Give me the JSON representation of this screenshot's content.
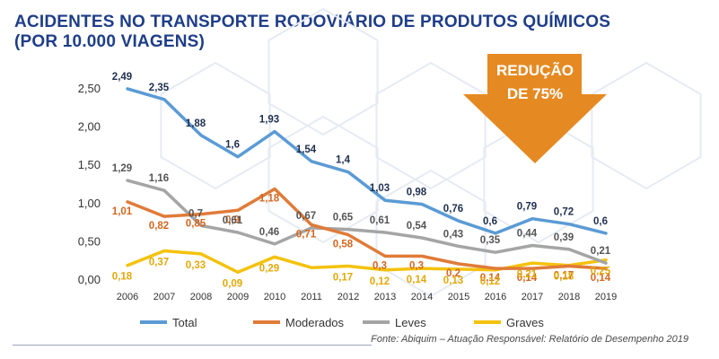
{
  "title_line1": "ACIDENTES NO TRANSPORTE RODOVIÁRIO DE PRODUTOS QUÍMICOS",
  "title_line2": "(POR 10.000 VIAGENS)",
  "source": "Fonte: Abiquim – Atuação Responsável: Relatório de Desempenho 2019",
  "callout": {
    "line1": "REDUÇÃO",
    "line2": "DE 75%",
    "color": "#e58a23"
  },
  "chart_data": {
    "type": "line",
    "x": [
      "2006",
      "2007",
      "2008",
      "2009",
      "2010",
      "2011",
      "2012",
      "2013",
      "2014",
      "2015",
      "2016",
      "2017",
      "2018",
      "2019"
    ],
    "ylim": [
      0,
      2.5
    ],
    "yticks": [
      "0,00",
      "0,50",
      "1,00",
      "1,50",
      "2,00",
      "2,50"
    ],
    "grid": false,
    "legend": "bottom",
    "series": [
      {
        "name": "Total",
        "color": "#5b9bd5",
        "values": [
          2.49,
          2.35,
          1.88,
          1.6,
          1.93,
          1.54,
          1.4,
          1.03,
          0.98,
          0.76,
          0.6,
          0.79,
          0.72,
          0.6
        ],
        "labels": [
          "2,49",
          "2,35",
          "1,88",
          "1,6",
          "1,93",
          "1,54",
          "1,4",
          "1,03",
          "0,98",
          "0,76",
          "0,6",
          "0,79",
          "0,72",
          "0,6"
        ]
      },
      {
        "name": "Moderados",
        "color": "#e07b39",
        "values": [
          1.01,
          0.82,
          0.85,
          0.9,
          1.18,
          0.71,
          0.58,
          0.3,
          0.3,
          0.2,
          0.14,
          0.14,
          0.17,
          0.14
        ],
        "labels": [
          "1,01",
          "0,82",
          "0,85",
          "0,9",
          "1,18",
          "0,71",
          "0,58",
          "0,3",
          "0,3",
          "0,2",
          "0,14",
          "0,14",
          "0,17",
          "0,14"
        ]
      },
      {
        "name": "Leves",
        "color": "#a5a5a5",
        "values": [
          1.29,
          1.16,
          0.7,
          0.61,
          0.46,
          0.67,
          0.65,
          0.61,
          0.54,
          0.43,
          0.35,
          0.44,
          0.39,
          0.21
        ],
        "labels": [
          "1,29",
          "1,16",
          "0,7",
          "0,61",
          "0,46",
          "0,67",
          "0,65",
          "0,61",
          "0,54",
          "0,43",
          "0,35",
          "0,44",
          "0,39",
          "0,21"
        ]
      },
      {
        "name": "Graves",
        "color": "#f4c20d",
        "values": [
          0.18,
          0.37,
          0.33,
          0.09,
          0.29,
          0.15,
          0.17,
          0.12,
          0.14,
          0.13,
          0.12,
          0.21,
          0.18,
          0.25
        ],
        "labels": [
          "0,18",
          "0,37",
          "0,33",
          "0,09",
          "0,29",
          "",
          "0,17",
          "0,12",
          "0,14",
          "0,13",
          "0,12",
          "0,21",
          "0,18",
          "0,25"
        ]
      }
    ]
  }
}
